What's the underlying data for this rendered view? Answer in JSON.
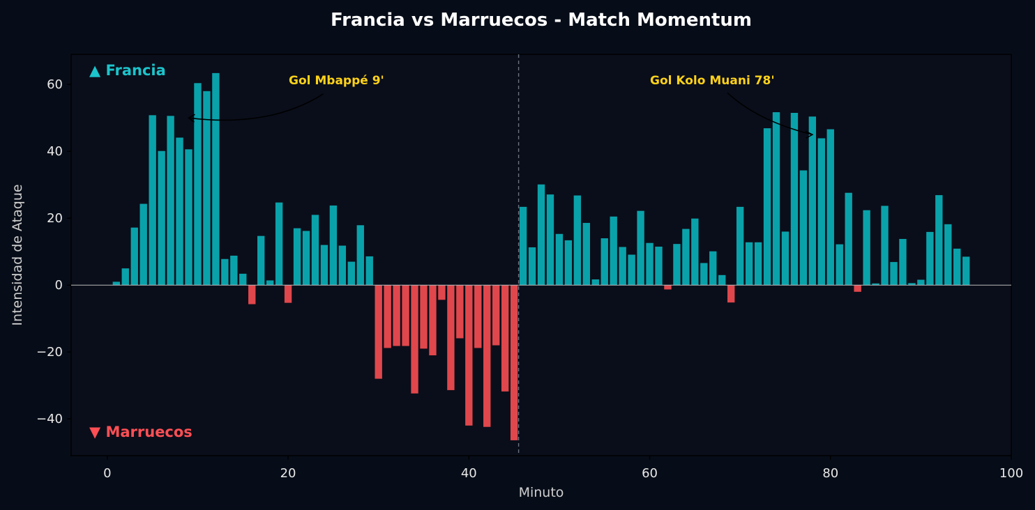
{
  "chart_data": {
    "type": "bar",
    "title": "Francia vs Marruecos - Match Momentum",
    "xlabel": "Minuto",
    "ylabel": "Intensidad de Ataque",
    "xlim": [
      -4,
      100
    ],
    "ylim": [
      -51,
      69
    ],
    "x_ticks": [
      0,
      20,
      40,
      60,
      80,
      100
    ],
    "x_tick_labels": [
      "0",
      "20",
      "40",
      "60",
      "80",
      "100"
    ],
    "y_ticks": [
      -40,
      -20,
      0,
      20,
      40,
      60
    ],
    "y_tick_labels": [
      "−40",
      "−20",
      "0",
      "20",
      "40",
      "60"
    ],
    "grid": false,
    "halftime_line_x": 45.5,
    "colors": {
      "francia": "#0aa2aa",
      "marruecos": "#e0474c",
      "background": "#070d18",
      "annotation": "#ffd21a"
    },
    "team_labels": {
      "francia": {
        "text": "▲ Francia",
        "color": "#1cc4cc"
      },
      "marruecos": {
        "text": "▼ Marruecos",
        "color": "#ff4f55"
      }
    },
    "annotations": [
      {
        "text": "Gol Mbappé 9'",
        "x": 9,
        "y": 50
      },
      {
        "text": "Gol Kolo Muani 78'",
        "x": 78,
        "y": 45
      }
    ],
    "minutes": [
      1,
      2,
      3,
      4,
      5,
      6,
      7,
      8,
      9,
      10,
      11,
      12,
      13,
      14,
      15,
      16,
      17,
      18,
      19,
      20,
      21,
      22,
      23,
      24,
      25,
      26,
      27,
      28,
      29,
      30,
      31,
      32,
      33,
      34,
      35,
      36,
      37,
      38,
      39,
      40,
      41,
      42,
      43,
      44,
      45,
      46,
      47,
      48,
      49,
      50,
      51,
      52,
      53,
      54,
      55,
      56,
      57,
      58,
      59,
      60,
      61,
      62,
      63,
      64,
      65,
      66,
      67,
      68,
      69,
      70,
      71,
      72,
      73,
      74,
      75,
      76,
      77,
      78,
      79,
      80,
      81,
      82,
      83,
      84,
      85,
      86,
      87,
      88,
      89,
      90,
      91,
      92,
      93,
      94,
      95
    ],
    "values": [
      1,
      5,
      17.2,
      24.3,
      50.8,
      40.1,
      50.6,
      44.1,
      40.6,
      60.4,
      58.0,
      63.4,
      7.8,
      8.8,
      3.4,
      -5.7,
      14.7,
      1.4,
      24.7,
      -5.3,
      17.0,
      16.2,
      21.0,
      12.0,
      23.8,
      11.8,
      7.0,
      17.9,
      8.6,
      -28.0,
      -18.8,
      -18.2,
      -18.2,
      -32.4,
      -19.0,
      -21.0,
      -4.4,
      -31.4,
      -15.9,
      -42.0,
      -18.8,
      -42.4,
      -18.0,
      -31.8,
      -46.4,
      23.4,
      11.3,
      30.1,
      27.1,
      15.3,
      13.4,
      26.8,
      18.6,
      1.7,
      14.0,
      20.5,
      11.4,
      9.1,
      22.2,
      12.6,
      11.5,
      -1.3,
      12.3,
      16.8,
      19.9,
      6.6,
      10.1,
      3.0,
      -5.2,
      23.4,
      12.8,
      12.8,
      46.9,
      51.7,
      16.0,
      51.5,
      34.3,
      50.4,
      43.9,
      46.6,
      12.2,
      27.6,
      -2.0,
      22.4,
      0.5,
      23.7,
      6.9,
      13.8,
      0.6,
      1.6,
      15.9,
      26.9,
      18.2,
      10.9,
      8.5
    ]
  }
}
